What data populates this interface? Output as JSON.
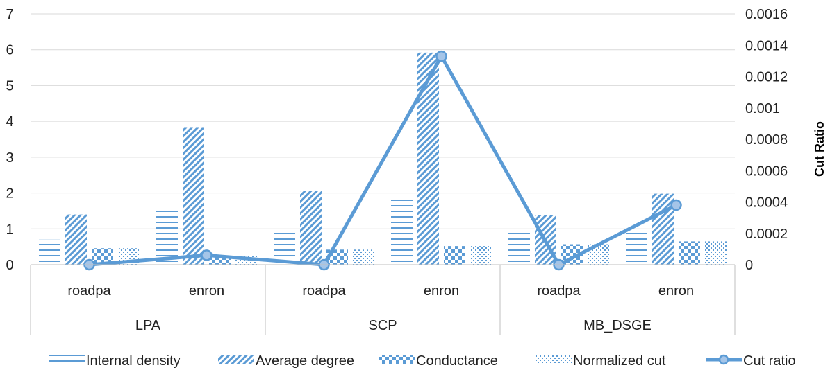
{
  "chart_data": {
    "type": "bar",
    "title": "",
    "groups": [
      {
        "label": "LPA",
        "categories": [
          "roadpa",
          "enron"
        ]
      },
      {
        "label": "SCP",
        "categories": [
          "roadpa",
          "enron"
        ]
      },
      {
        "label": "MB_DSGE",
        "categories": [
          "roadpa",
          "enron"
        ]
      }
    ],
    "categories": [
      "roadpa",
      "enron",
      "roadpa",
      "enron",
      "roadpa",
      "enron"
    ],
    "series": [
      {
        "name": "Internal density",
        "kind": "bar",
        "pattern": "horizontal-lines",
        "axis": "left",
        "values": [
          0.7,
          1.62,
          0.98,
          1.8,
          0.98,
          0.98
        ]
      },
      {
        "name": "Average degree",
        "kind": "bar",
        "pattern": "diagonal-lines",
        "axis": "left",
        "values": [
          1.4,
          3.82,
          2.05,
          5.92,
          1.38,
          1.98
        ]
      },
      {
        "name": "Conductance",
        "kind": "bar",
        "pattern": "checkerboard",
        "axis": "left",
        "values": [
          0.46,
          0.25,
          0.42,
          0.52,
          0.57,
          0.65
        ]
      },
      {
        "name": "Normalized cut",
        "kind": "bar",
        "pattern": "dots",
        "axis": "left",
        "values": [
          0.46,
          0.25,
          0.42,
          0.52,
          0.57,
          0.65
        ]
      },
      {
        "name": "Cut ratio",
        "kind": "line",
        "marker": "circle",
        "axis": "right",
        "values": [
          0.0,
          6e-05,
          0.0,
          0.00133,
          0.0,
          0.00038
        ]
      }
    ],
    "y_left": {
      "min": 0,
      "max": 7,
      "ticks": [
        "0",
        "1",
        "2",
        "3",
        "4",
        "5",
        "6",
        "7"
      ],
      "label": ""
    },
    "y_right": {
      "min": 0,
      "max": 0.0016,
      "ticks": [
        "0",
        "0.0002",
        "0.0004",
        "0.0006",
        "0.0008",
        "0.001",
        "0.0012",
        "0.0014",
        "0.0016"
      ],
      "label": "Cut Ratio"
    },
    "grid": "horizontal",
    "legend": "bottom",
    "colors": {
      "series": "#5b9bd5",
      "line": "#5b9bd5",
      "marker_fill": "#a5c5e8",
      "grid": "#d9d9d9",
      "axis_border": "#bfbfbf"
    }
  }
}
